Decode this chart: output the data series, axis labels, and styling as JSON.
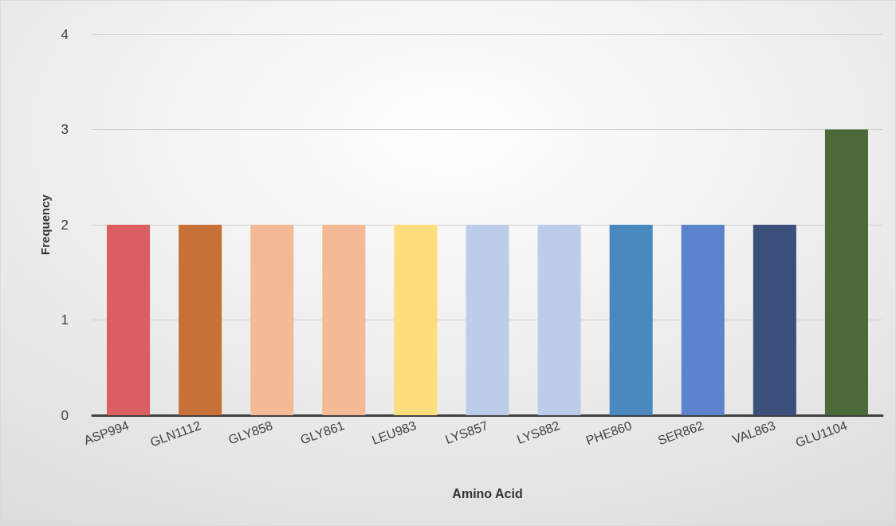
{
  "chart_data": {
    "type": "bar",
    "xlabel": "Amino Acid",
    "ylabel": "Frequency",
    "categories": [
      "ASP994",
      "GLN1112",
      "GLY858",
      "GLY861",
      "LEU983",
      "LYS857",
      "LYS882",
      "PHE860",
      "SER862",
      "VAL863",
      "GLU1104"
    ],
    "values": [
      2,
      2,
      2,
      2,
      2,
      2,
      2,
      2,
      2,
      2,
      3
    ],
    "colors": [
      "#d95f60",
      "#c87137",
      "#f4b995",
      "#f4b995",
      "#fedd7c",
      "#bdcde9",
      "#bdcde9",
      "#4a89c0",
      "#5b84cc",
      "#3a4f7a",
      "#4b6a38"
    ],
    "ylim": [
      0,
      4
    ],
    "yticks": [
      0,
      1,
      2,
      3,
      4
    ],
    "grid": "y"
  }
}
